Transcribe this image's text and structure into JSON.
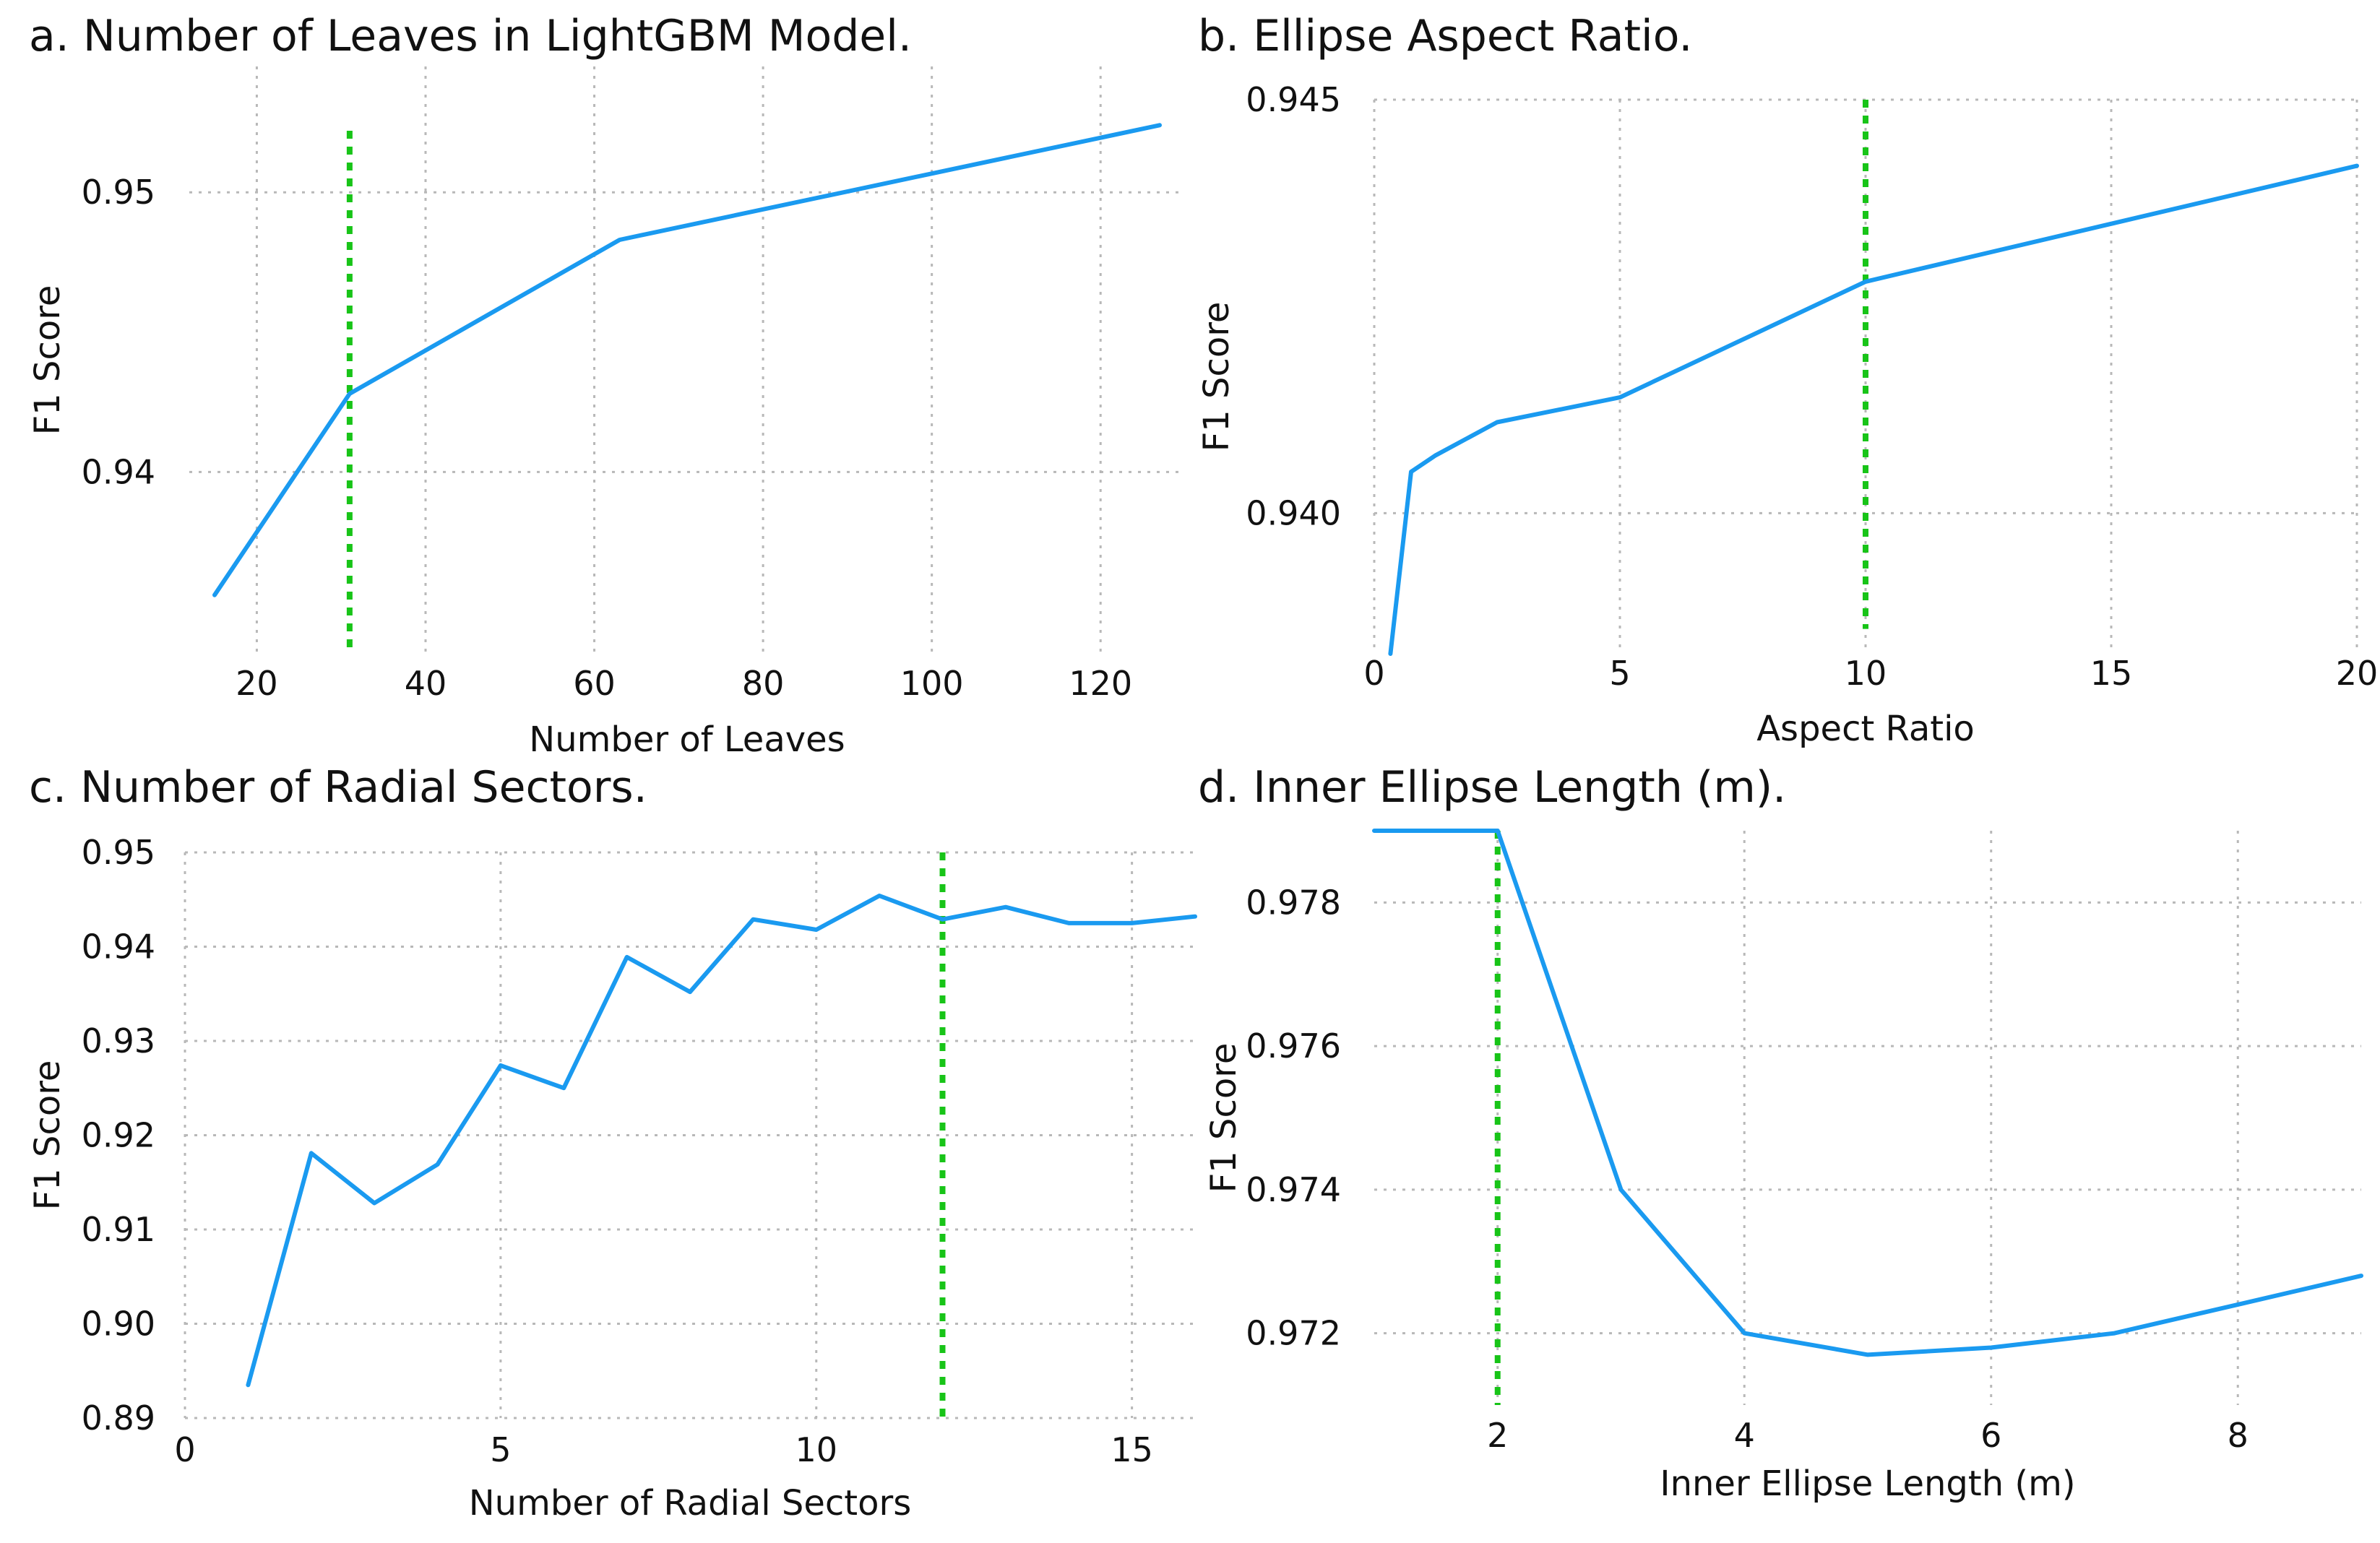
{
  "colors": {
    "series": "#1a9af0",
    "marker": "#18c418",
    "grid": "#b8b8b8",
    "text": "#111111"
  },
  "chart_data": [
    {
      "id": "a",
      "type": "line",
      "title": "a. Number of Leaves in LightGBM Model.",
      "xlabel": "Number of Leaves",
      "ylabel": "F1 Score",
      "xlim": [
        12,
        130
      ],
      "ylim": [
        0.9335,
        0.9545
      ],
      "xticks": [
        20,
        40,
        60,
        80,
        100,
        120
      ],
      "yticks": [
        0.94,
        0.95
      ],
      "ytick_labels": [
        "0.94",
        "0.95"
      ],
      "marker_x": 31,
      "marker_range": [
        0.9335,
        0.9522
      ],
      "series": [
        {
          "name": "F1 Score",
          "x": [
            15,
            31,
            63,
            127
          ],
          "y": [
            0.9356,
            0.9428,
            0.9483,
            0.9524
          ]
        }
      ]
    },
    {
      "id": "b",
      "type": "line",
      "title": "b. Ellipse Aspect Ratio.",
      "xlabel": "Aspect Ratio",
      "ylabel": "F1 Score",
      "xlim": [
        0,
        20
      ],
      "ylim": [
        0.9383,
        0.945
      ],
      "xticks": [
        0,
        5,
        10,
        15,
        20
      ],
      "yticks": [
        0.94,
        0.945
      ],
      "ytick_labels": [
        "0.940",
        "0.945"
      ],
      "marker_x": 10,
      "marker_range": [
        0.9386,
        0.945
      ],
      "series": [
        {
          "name": "F1 Score",
          "x": [
            0.33,
            0.75,
            1.25,
            2.5,
            5,
            10,
            20
          ],
          "y": [
            0.9383,
            0.9405,
            0.9407,
            0.9411,
            0.9414,
            0.9428,
            0.9442
          ]
        }
      ]
    },
    {
      "id": "c",
      "type": "line",
      "title": "c. Number of Radial Sectors.",
      "xlabel": "Number of Radial Sectors",
      "ylabel": "F1 Score",
      "xlim": [
        0,
        16
      ],
      "ylim": [
        0.89,
        0.95
      ],
      "xticks": [
        0,
        5,
        10,
        15
      ],
      "yticks": [
        0.89,
        0.9,
        0.91,
        0.92,
        0.93,
        0.94,
        0.95
      ],
      "ytick_labels": [
        "0.89",
        "0.90",
        "0.91",
        "0.92",
        "0.93",
        "0.94",
        "0.95"
      ],
      "marker_x": 12,
      "marker_range": [
        0.89,
        0.95
      ],
      "series": [
        {
          "name": "F1 Score",
          "x": [
            1,
            2,
            3,
            4,
            5,
            6,
            7,
            8,
            9,
            10,
            11,
            12,
            13,
            14,
            15,
            16
          ],
          "y": [
            0.8935,
            0.9181,
            0.9128,
            0.9169,
            0.9274,
            0.925,
            0.9389,
            0.9352,
            0.9429,
            0.9418,
            0.9454,
            0.9429,
            0.9442,
            0.9425,
            0.9425,
            0.9432
          ]
        }
      ]
    },
    {
      "id": "d",
      "type": "line",
      "title": "d. Inner Ellipse Length (m).",
      "xlabel": "Inner Ellipse Length (m)",
      "ylabel": "F1 Score",
      "xlim": [
        1,
        9
      ],
      "ylim": [
        0.971,
        0.979
      ],
      "xticks": [
        2,
        4,
        6,
        8
      ],
      "yticks": [
        0.972,
        0.974,
        0.976,
        0.978
      ],
      "ytick_labels": [
        "0.972",
        "0.974",
        "0.976",
        "0.978"
      ],
      "marker_x": 2,
      "marker_range": [
        0.971,
        0.979
      ],
      "series": [
        {
          "name": "F1 Score",
          "x": [
            1,
            2,
            3,
            4,
            5,
            6,
            7,
            8,
            9
          ],
          "y": [
            0.979,
            0.979,
            0.974,
            0.972,
            0.9717,
            0.9718,
            0.972,
            0.9724,
            0.9728
          ]
        }
      ]
    }
  ]
}
